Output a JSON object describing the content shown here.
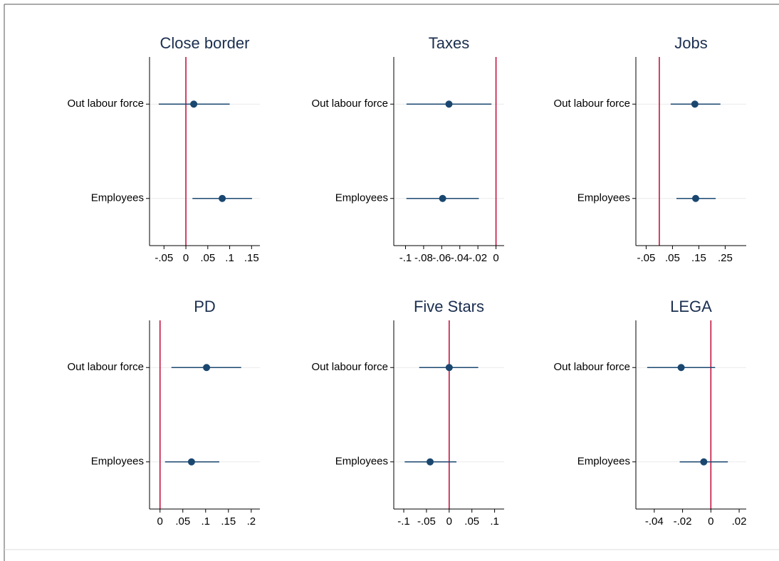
{
  "chart_data": [
    {
      "type": "coefplot",
      "title": "Close border",
      "categories": [
        "Out labour force",
        "Employees"
      ],
      "values": [
        0.018,
        0.083
      ],
      "ci_low": [
        -0.062,
        0.015
      ],
      "ci_high": [
        0.1,
        0.151
      ],
      "xlim": [
        -0.083,
        0.169
      ],
      "xticks": [
        {
          "value": -0.05,
          "label": "-.05"
        },
        0,
        {
          "value": 0.05,
          "label": ".05"
        },
        {
          "value": 0.1,
          "label": ".1"
        },
        {
          "value": 0.15,
          "label": ".15"
        }
      ],
      "refline": 0,
      "color": "#1a476f",
      "refline_color": "#c10534"
    },
    {
      "type": "coefplot",
      "title": "Taxes",
      "categories": [
        "Out labour force",
        "Employees"
      ],
      "values": [
        -0.052,
        -0.059
      ],
      "ci_low": [
        -0.099,
        -0.099
      ],
      "ci_high": [
        -0.005,
        -0.019
      ],
      "xlim": [
        -0.113,
        0.009
      ],
      "xticks": [
        {
          "value": -0.1,
          "label": "-.1"
        },
        {
          "value": -0.08,
          "label": "-.08"
        },
        {
          "value": -0.06,
          "label": "-.06"
        },
        {
          "value": -0.04,
          "label": "-.04"
        },
        {
          "value": -0.02,
          "label": "-.02"
        },
        0
      ],
      "refline": 0,
      "color": "#1a476f",
      "refline_color": "#c10534"
    },
    {
      "type": "coefplot",
      "title": "Jobs",
      "categories": [
        "Out labour force",
        "Employees"
      ],
      "values": [
        0.135,
        0.138
      ],
      "ci_low": [
        0.043,
        0.065
      ],
      "ci_high": [
        0.232,
        0.214
      ],
      "xlim": [
        -0.089,
        0.33
      ],
      "xticks": [
        {
          "value": -0.05,
          "label": "-.05"
        },
        {
          "value": 0.05,
          "label": ".05"
        },
        {
          "value": 0.15,
          "label": ".15"
        },
        {
          "value": 0.25,
          "label": ".25"
        }
      ],
      "refline": 0,
      "color": "#1a476f",
      "refline_color": "#c10534"
    },
    {
      "type": "coefplot",
      "title": "PD",
      "categories": [
        "Out labour force",
        "Employees"
      ],
      "values": [
        0.102,
        0.069
      ],
      "ci_low": [
        0.025,
        0.011
      ],
      "ci_high": [
        0.178,
        0.13
      ],
      "xlim": [
        -0.023,
        0.219
      ],
      "xticks": [
        0,
        {
          "value": 0.05,
          "label": ".05"
        },
        {
          "value": 0.1,
          "label": ".1"
        },
        {
          "value": 0.15,
          "label": ".15"
        },
        {
          "value": 0.2,
          "label": ".2"
        }
      ],
      "refline": 0,
      "color": "#1a476f",
      "refline_color": "#c10534"
    },
    {
      "type": "coefplot",
      "title": "Five Stars",
      "categories": [
        "Out labour force",
        "Employees"
      ],
      "values": [
        0,
        -0.042
      ],
      "ci_low": [
        -0.066,
        -0.098
      ],
      "ci_high": [
        0.064,
        0.016
      ],
      "xlim": [
        -0.122,
        0.121
      ],
      "xticks": [
        {
          "value": -0.1,
          "label": "-.1"
        },
        {
          "value": -0.05,
          "label": "-.05"
        },
        0,
        {
          "value": 0.05,
          "label": ".05"
        },
        {
          "value": 0.1,
          "label": ".1"
        }
      ],
      "refline": 0,
      "color": "#1a476f",
      "refline_color": "#c10534"
    },
    {
      "type": "coefplot",
      "title": "LEGA",
      "categories": [
        "Out labour force",
        "Employees"
      ],
      "values": [
        -0.021,
        -0.005
      ],
      "ci_low": [
        -0.045,
        -0.022
      ],
      "ci_high": [
        0.003,
        0.012
      ],
      "xlim": [
        -0.053,
        0.025
      ],
      "xticks": [
        {
          "value": -0.04,
          "label": "-.04"
        },
        {
          "value": -0.02,
          "label": "-.02"
        },
        0,
        {
          "value": 0.02,
          "label": ".02"
        }
      ],
      "refline": 0,
      "color": "#1a476f",
      "refline_color": "#c10534"
    }
  ]
}
